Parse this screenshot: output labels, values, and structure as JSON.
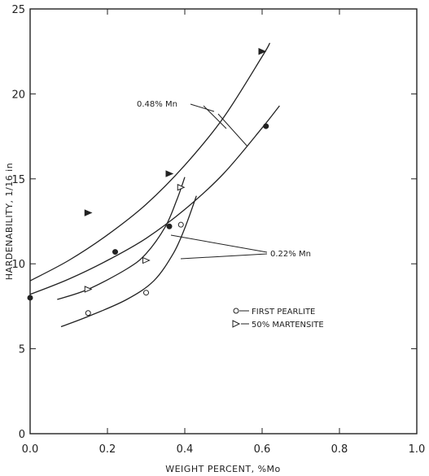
{
  "chart_data": {
    "type": "line",
    "xlabel": "WEIGHT PERCENT, %Mo",
    "ylabel": "HARDENABILITY, 1/16 in",
    "xlim": [
      0.0,
      1.0
    ],
    "ylim": [
      0,
      25
    ],
    "x_ticks": [
      "0.0",
      "0.2",
      "0.4",
      "0.6",
      "0.8",
      "1.0"
    ],
    "y_ticks": [
      "0",
      "5",
      "10",
      "15",
      "20",
      "25"
    ],
    "grid": false,
    "legend": [
      {
        "marker": "circle",
        "label": "FIRST PEARLITE"
      },
      {
        "marker": "triangle",
        "label": "50% MARTENSITE"
      }
    ],
    "annotations": [
      {
        "text": "0.48% Mn",
        "refers_to": [
          "0.48% Mn 50% martensite",
          "0.48% Mn first pearlite"
        ]
      },
      {
        "text": "0.22% Mn",
        "refers_to": [
          "0.22% Mn 50% martensite",
          "0.22% Mn first pearlite"
        ]
      }
    ],
    "series": [
      {
        "group": "0.48% Mn 50% martensite",
        "curve": [
          [
            0.0,
            9.0
          ],
          [
            0.1,
            10.2
          ],
          [
            0.2,
            11.7
          ],
          [
            0.3,
            13.5
          ],
          [
            0.4,
            15.8
          ],
          [
            0.5,
            18.6
          ],
          [
            0.6,
            22.2
          ],
          [
            0.62,
            23.0
          ]
        ],
        "points": [
          [
            0.15,
            13.0
          ],
          [
            0.36,
            15.3
          ],
          [
            0.6,
            22.5
          ]
        ],
        "marker": "triangle",
        "filled": true
      },
      {
        "group": "0.48% Mn first pearlite",
        "curve": [
          [
            0.0,
            8.2
          ],
          [
            0.1,
            9.1
          ],
          [
            0.2,
            10.2
          ],
          [
            0.3,
            11.5
          ],
          [
            0.4,
            13.2
          ],
          [
            0.5,
            15.3
          ],
          [
            0.6,
            18.0
          ],
          [
            0.645,
            19.3
          ]
        ],
        "points": [
          [
            0.0,
            8.0
          ],
          [
            0.22,
            10.7
          ],
          [
            0.36,
            12.2
          ],
          [
            0.61,
            18.1
          ]
        ],
        "marker": "circle",
        "filled": true
      },
      {
        "group": "0.22% Mn 50% martensite",
        "curve": [
          [
            0.07,
            7.9
          ],
          [
            0.15,
            8.5
          ],
          [
            0.25,
            9.7
          ],
          [
            0.3,
            10.6
          ],
          [
            0.35,
            12.2
          ],
          [
            0.38,
            13.8
          ],
          [
            0.4,
            15.1
          ]
        ],
        "points": [
          [
            0.15,
            8.5
          ],
          [
            0.3,
            10.2
          ],
          [
            0.39,
            14.5
          ]
        ],
        "marker": "triangle",
        "filled": false
      },
      {
        "group": "0.22% Mn first pearlite",
        "curve": [
          [
            0.08,
            6.3
          ],
          [
            0.15,
            6.9
          ],
          [
            0.25,
            7.9
          ],
          [
            0.32,
            9.0
          ],
          [
            0.37,
            10.6
          ],
          [
            0.4,
            12.1
          ],
          [
            0.43,
            14.0
          ]
        ],
        "points": [
          [
            0.15,
            7.1
          ],
          [
            0.3,
            8.3
          ],
          [
            0.39,
            12.3
          ]
        ],
        "marker": "circle",
        "filled": false
      }
    ]
  }
}
